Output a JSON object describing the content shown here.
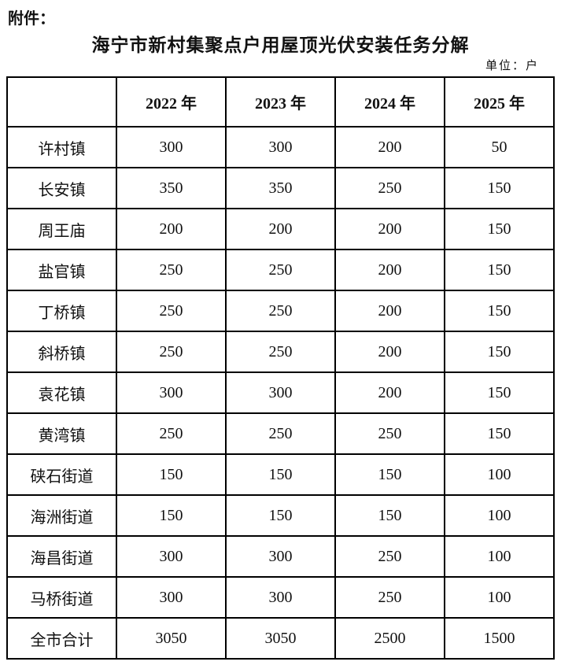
{
  "page": {
    "attachment_label": "附件：",
    "title": "海宁市新村集聚点户用屋顶光伏安装任务分解",
    "unit_label": "单位：户"
  },
  "chart_data": {
    "type": "table",
    "title": "海宁市新村集聚点户用屋顶光伏安装任务分解",
    "unit_label": "单位：户",
    "columns": [
      "",
      "2022 年",
      "2023 年",
      "2024 年",
      "2025 年"
    ],
    "rows": [
      {
        "label": "许村镇",
        "values": [
          "300",
          "300",
          "200",
          "50"
        ]
      },
      {
        "label": "长安镇",
        "values": [
          "350",
          "350",
          "250",
          "150"
        ]
      },
      {
        "label": "周王庙",
        "values": [
          "200",
          "200",
          "200",
          "150"
        ]
      },
      {
        "label": "盐官镇",
        "values": [
          "250",
          "250",
          "200",
          "150"
        ]
      },
      {
        "label": "丁桥镇",
        "values": [
          "250",
          "250",
          "200",
          "150"
        ]
      },
      {
        "label": "斜桥镇",
        "values": [
          "250",
          "250",
          "200",
          "150"
        ]
      },
      {
        "label": "袁花镇",
        "values": [
          "300",
          "300",
          "200",
          "150"
        ]
      },
      {
        "label": "黄湾镇",
        "values": [
          "250",
          "250",
          "250",
          "150"
        ]
      },
      {
        "label": "硖石街道",
        "values": [
          "150",
          "150",
          "150",
          "100"
        ]
      },
      {
        "label": "海洲街道",
        "values": [
          "150",
          "150",
          "150",
          "100"
        ]
      },
      {
        "label": "海昌街道",
        "values": [
          "300",
          "300",
          "250",
          "100"
        ]
      },
      {
        "label": "马桥街道",
        "values": [
          "300",
          "300",
          "250",
          "100"
        ]
      },
      {
        "label": "全市合计",
        "values": [
          "3050",
          "3050",
          "2500",
          "1500"
        ]
      }
    ]
  }
}
